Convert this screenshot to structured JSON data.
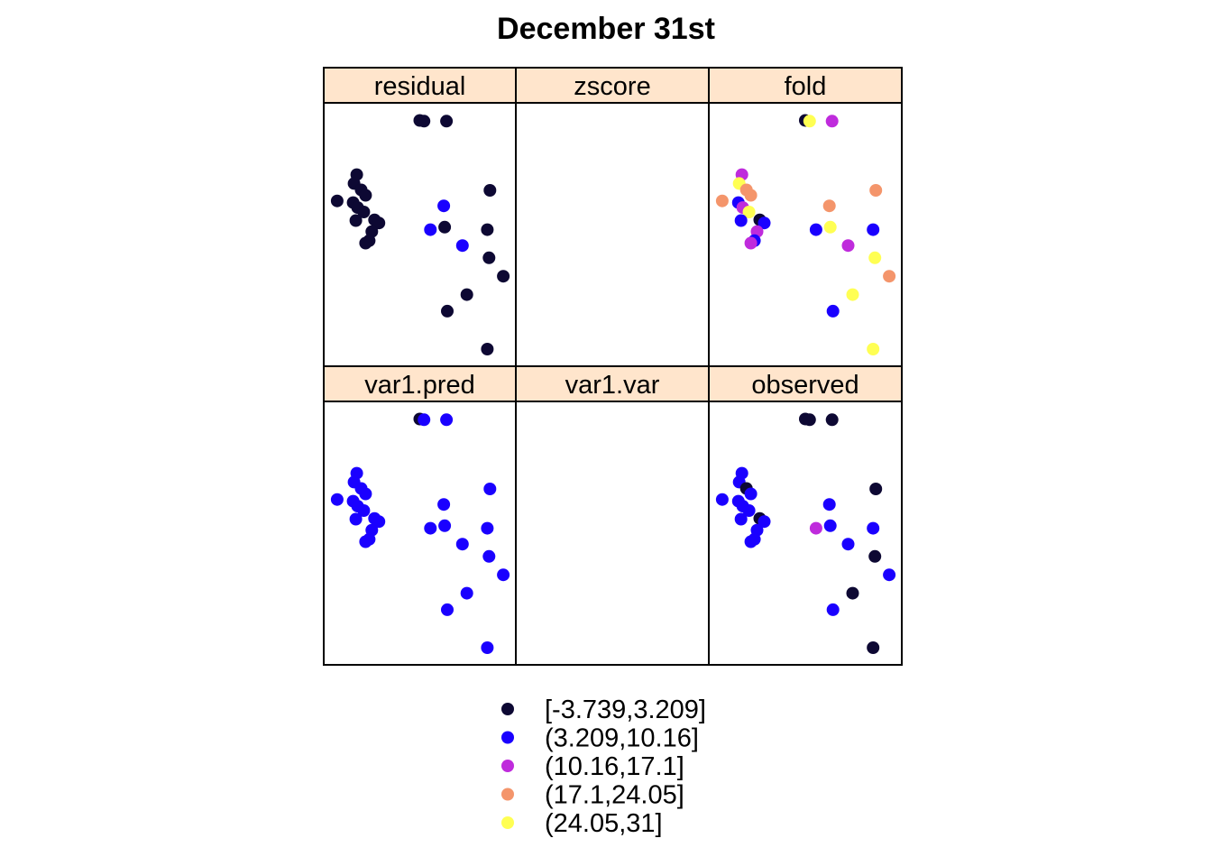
{
  "chart_data": {
    "type": "scatter",
    "title": "December 31st",
    "xlabel": "",
    "ylabel": "",
    "layout": "3 columns x 2 rows of panels",
    "grid": false,
    "legend_position": "bottom",
    "panels": [
      "residual",
      "zscore",
      "fold",
      "var1.pred",
      "var1.var",
      "observed"
    ],
    "classes": [
      {
        "label": "[-3.739,3.209]",
        "color": "#0D0833"
      },
      {
        "label": "(3.209,10.16]",
        "color": "#1A00FF"
      },
      {
        "label": "(10.16,17.1]",
        "color": "#BF2BDC"
      },
      {
        "label": "(17.1,24.05]",
        "color": "#F4956B"
      },
      {
        "label": "(24.05,31]",
        "color": "#FFFF53"
      }
    ],
    "locations": [
      {
        "x": 0.5,
        "y": 0.965
      },
      {
        "x": 0.524,
        "y": 0.962
      },
      {
        "x": 0.65,
        "y": 0.962
      },
      {
        "x": 0.145,
        "y": 0.744
      },
      {
        "x": 0.13,
        "y": 0.708
      },
      {
        "x": 0.17,
        "y": 0.682
      },
      {
        "x": 0.195,
        "y": 0.66
      },
      {
        "x": 0.035,
        "y": 0.637
      },
      {
        "x": 0.125,
        "y": 0.63
      },
      {
        "x": 0.15,
        "y": 0.61
      },
      {
        "x": 0.185,
        "y": 0.592
      },
      {
        "x": 0.14,
        "y": 0.557
      },
      {
        "x": 0.245,
        "y": 0.56
      },
      {
        "x": 0.27,
        "y": 0.547
      },
      {
        "x": 0.23,
        "y": 0.512
      },
      {
        "x": 0.215,
        "y": 0.475
      },
      {
        "x": 0.195,
        "y": 0.465
      },
      {
        "x": 0.895,
        "y": 0.68
      },
      {
        "x": 0.635,
        "y": 0.617
      },
      {
        "x": 0.56,
        "y": 0.52
      },
      {
        "x": 0.64,
        "y": 0.53
      },
      {
        "x": 0.88,
        "y": 0.52
      },
      {
        "x": 0.74,
        "y": 0.455
      },
      {
        "x": 0.89,
        "y": 0.405
      },
      {
        "x": 0.97,
        "y": 0.33
      },
      {
        "x": 0.765,
        "y": 0.255
      },
      {
        "x": 0.655,
        "y": 0.188
      },
      {
        "x": 0.88,
        "y": 0.033
      }
    ],
    "values": {
      "residual": [
        0,
        0,
        0,
        0,
        0,
        0,
        0,
        0,
        0,
        0,
        0,
        0,
        0,
        0,
        0,
        0,
        0,
        0,
        1,
        1,
        0,
        0,
        1,
        0,
        0,
        0,
        0,
        0
      ],
      "zscore": [],
      "fold": [
        0,
        4,
        2,
        2,
        4,
        3,
        3,
        3,
        1,
        2,
        4,
        1,
        0,
        1,
        2,
        1,
        2,
        3,
        3,
        1,
        4,
        1,
        2,
        4,
        3,
        4,
        1,
        4
      ],
      "var1.pred": [
        0,
        1,
        1,
        1,
        1,
        1,
        1,
        1,
        1,
        1,
        1,
        1,
        1,
        1,
        1,
        1,
        1,
        1,
        1,
        1,
        1,
        1,
        1,
        1,
        1,
        1,
        1,
        1
      ],
      "var1.var": [],
      "observed": [
        0,
        0,
        0,
        1,
        1,
        0,
        1,
        1,
        1,
        1,
        1,
        1,
        0,
        1,
        1,
        1,
        1,
        0,
        1,
        2,
        1,
        1,
        1,
        0,
        1,
        0,
        1,
        0
      ]
    }
  }
}
